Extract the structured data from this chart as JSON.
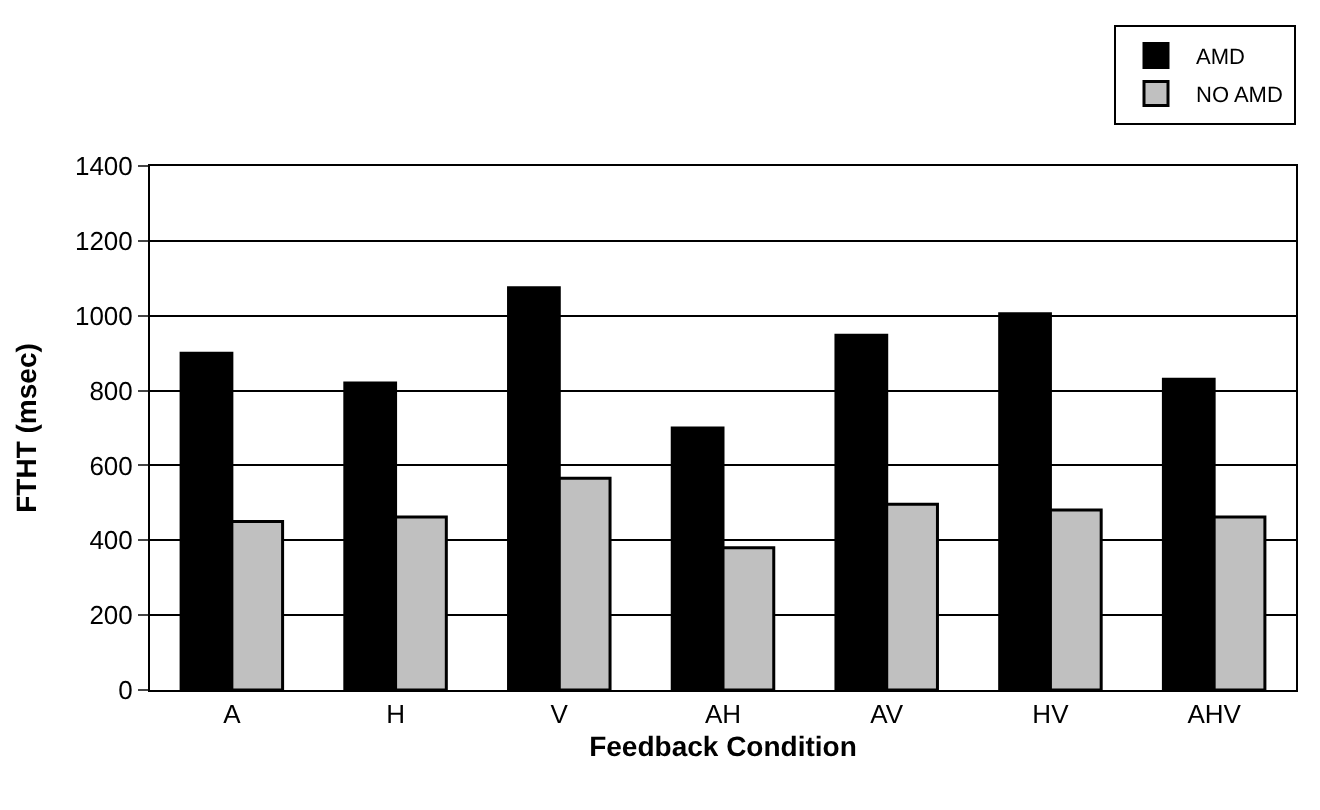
{
  "chart_data": {
    "type": "bar",
    "xlabel": "Feedback Condition",
    "ylabel": "FTHT (msec)",
    "categories": [
      "A",
      "H",
      "V",
      "AH",
      "AV",
      "HV",
      "AHV"
    ],
    "series": [
      {
        "name": "AMD",
        "color": "#000000",
        "values": [
          900,
          820,
          1075,
          700,
          948,
          1005,
          830
        ]
      },
      {
        "name": "NO AMD",
        "color": "#c0c0c0",
        "values": [
          450,
          462,
          566,
          380,
          496,
          481,
          462
        ]
      }
    ],
    "ylim": [
      0,
      1400
    ],
    "yticks": [
      0,
      200,
      400,
      600,
      800,
      1000,
      1200,
      1400
    ],
    "grid": "y",
    "legend": "top right"
  }
}
